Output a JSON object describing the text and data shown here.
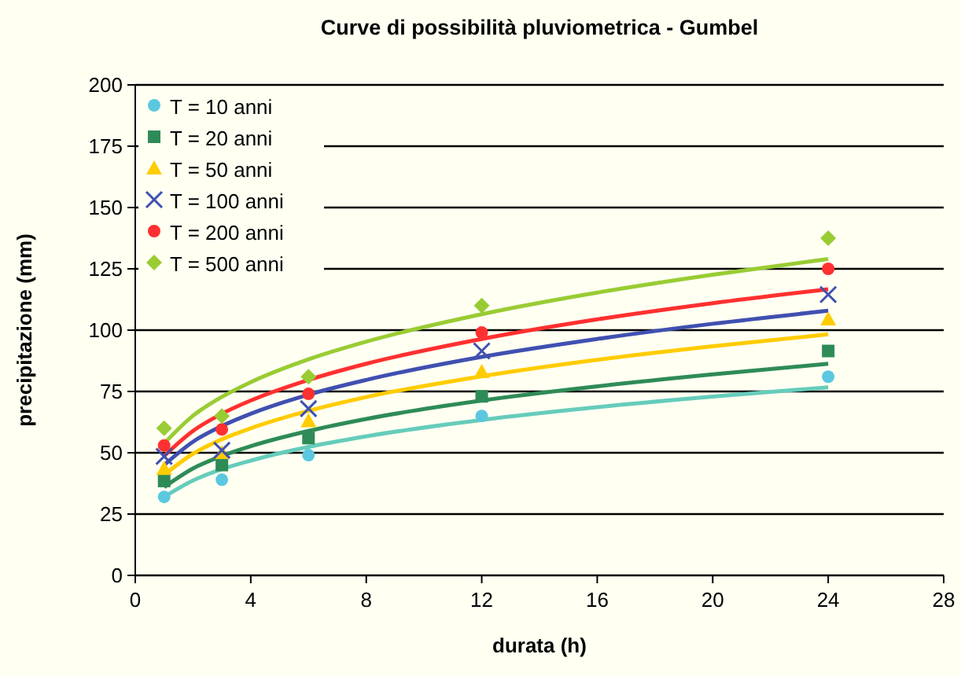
{
  "chart_data": {
    "type": "scatter",
    "title": "Curve di possibilità pluviometrica - Gumbel",
    "xlabel": "durata (h)",
    "ylabel": "precipitazione (mm)",
    "x": [
      1,
      3,
      6,
      12,
      24
    ],
    "xlim": [
      0,
      28
    ],
    "xticks": [
      0,
      4,
      8,
      12,
      16,
      20,
      24,
      28
    ],
    "ylim": [
      0,
      200
    ],
    "yticks": [
      0,
      25,
      50,
      75,
      100,
      125,
      150,
      175,
      200
    ],
    "grid": "y",
    "legend": "top left",
    "series": [
      {
        "name": "T = 10 anni",
        "color": "#5bc8e0",
        "marker": "circle",
        "values": [
          32,
          39,
          49,
          65,
          81
        ]
      },
      {
        "name": "T = 20 anni",
        "color": "#2e8b57",
        "marker": "square",
        "values": [
          38.5,
          45,
          56,
          73,
          91.5
        ]
      },
      {
        "name": "T = 50 anni",
        "color": "#ffcc00",
        "marker": "triangle",
        "values": [
          43.5,
          50,
          63,
          83,
          104.5
        ]
      },
      {
        "name": "T = 100 anni",
        "color": "#4050b0",
        "marker": "cross",
        "values": [
          48.5,
          51,
          68,
          91.5,
          114.5
        ]
      },
      {
        "name": "T = 200 anni",
        "color": "#ff3030",
        "marker": "circle",
        "values": [
          53,
          59.5,
          74,
          99,
          125
        ]
      },
      {
        "name": "T = 500 anni",
        "color": "#99cc33",
        "marker": "diamond",
        "values": [
          60,
          65,
          81,
          110,
          137.5
        ]
      },
      {
        "type": "line",
        "color": "#66ccbb",
        "marker": "none",
        "x": [
          1,
          2,
          3,
          4,
          6,
          8,
          12,
          16,
          20,
          24
        ],
        "values": [
          32,
          38.7,
          43.3,
          46.8,
          52.4,
          56.7,
          63.4,
          68.6,
          72.9,
          76.7
        ]
      },
      {
        "type": "line",
        "color": "#2e8b57",
        "marker": "none",
        "x": [
          1,
          2,
          3,
          4,
          6,
          8,
          12,
          16,
          20,
          24
        ],
        "values": [
          36,
          43.6,
          48.7,
          52.7,
          58.9,
          63.8,
          71.3,
          77.1,
          82,
          86.3
        ]
      },
      {
        "type": "line",
        "color": "#ffcc00",
        "marker": "none",
        "x": [
          1,
          2,
          3,
          4,
          6,
          8,
          12,
          16,
          20,
          24
        ],
        "values": [
          41,
          49.6,
          55.5,
          60,
          67.1,
          72.7,
          81.2,
          87.9,
          93.4,
          98.3
        ]
      },
      {
        "type": "line",
        "color": "#4050b0",
        "marker": "none",
        "x": [
          1,
          2,
          3,
          4,
          6,
          8,
          12,
          16,
          20,
          24
        ],
        "values": [
          45,
          54.5,
          60.9,
          65.9,
          73.7,
          79.7,
          89.1,
          96.4,
          102.6,
          107.9
        ]
      },
      {
        "type": "line",
        "color": "#ff3030",
        "marker": "none",
        "x": [
          1,
          2,
          3,
          4,
          6,
          8,
          12,
          16,
          20,
          24
        ],
        "values": [
          48.7,
          58.9,
          65.9,
          71.3,
          79.7,
          86.3,
          96.4,
          104.4,
          111,
          116.7
        ]
      },
      {
        "type": "line",
        "color": "#99cc33",
        "marker": "none",
        "x": [
          1,
          2,
          3,
          4,
          6,
          8,
          12,
          16,
          20,
          24
        ],
        "values": [
          53.8,
          65.1,
          72.8,
          78.8,
          88.1,
          95.3,
          106.5,
          115.3,
          122.6,
          129
        ]
      }
    ]
  }
}
